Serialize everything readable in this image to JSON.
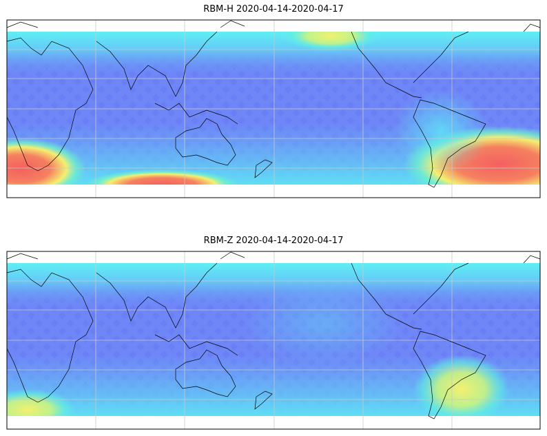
{
  "maps": [
    {
      "title": "RBM-H 2020-04-14-2020-04-17"
    },
    {
      "title": "RBM-Z 2020-04-14-2020-04-17"
    }
  ]
}
